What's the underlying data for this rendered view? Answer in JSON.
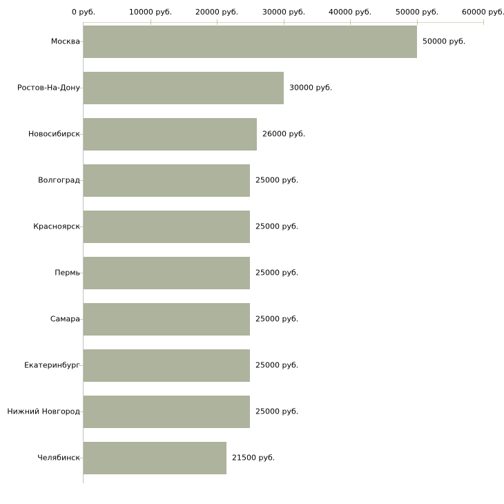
{
  "chart_data": {
    "type": "bar",
    "orientation": "horizontal",
    "title": "",
    "xlabel": "",
    "ylabel": "",
    "unit": "руб.",
    "categories": [
      "Москва",
      "Ростов-На-Дону",
      "Новосибирск",
      "Волгоград",
      "Красноярск",
      "Пермь",
      "Самара",
      "Екатеринбург",
      "Нижний Новгород",
      "Челябинск"
    ],
    "values": [
      50000,
      30000,
      26000,
      25000,
      25000,
      25000,
      25000,
      25000,
      25000,
      21500
    ],
    "value_labels": [
      "50000 руб.",
      "30000 руб.",
      "26000 руб.",
      "25000 руб.",
      "25000 руб.",
      "25000 руб.",
      "25000 руб.",
      "25000 руб.",
      "25000 руб.",
      "21500 руб."
    ],
    "x_axis": {
      "position": "top",
      "min": 0,
      "max": 60000,
      "ticks": [
        0,
        10000,
        20000,
        30000,
        40000,
        50000,
        60000
      ],
      "tick_labels": [
        "0 руб.",
        "10000 руб.",
        "20000 руб.",
        "30000 руб.",
        "40000 руб.",
        "50000 руб.",
        "60000 руб."
      ]
    },
    "legend": null,
    "grid": false,
    "colors": {
      "bar": "#adb39c",
      "axis_line": "#d6d6c4",
      "tick_mark": "#c8c8a0",
      "value_axis_line": "#c0c0c0",
      "text": "#000000",
      "background": "#ffffff"
    }
  }
}
